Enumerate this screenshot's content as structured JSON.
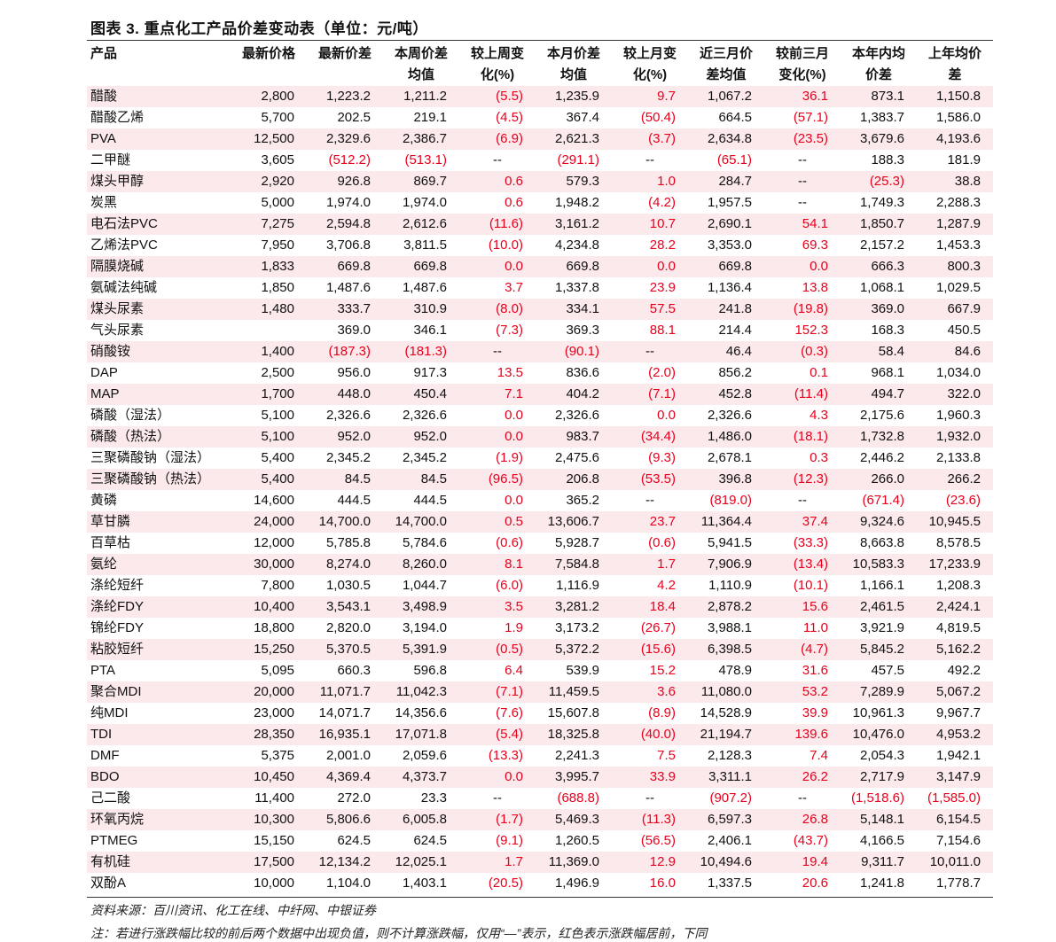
{
  "title": "图表 3. 重点化工产品价差变动表（单位：元/吨）",
  "headers": [
    [
      "产品",
      ""
    ],
    [
      "最新价格",
      ""
    ],
    [
      "最新价差",
      ""
    ],
    [
      "本周价差",
      "均值"
    ],
    [
      "较上周变",
      "化(%)"
    ],
    [
      "本月价差",
      "均值"
    ],
    [
      "较上月变",
      "化(%)"
    ],
    [
      "近三月价",
      "差均值"
    ],
    [
      "较前三月",
      "变化(%)"
    ],
    [
      "本年内均",
      "价差"
    ],
    [
      "上年均价",
      "差"
    ]
  ],
  "rows": [
    [
      "醋酸",
      "2,800",
      "1,223.2",
      "1,211.2",
      "(5.5)",
      "1,235.9",
      "9.7",
      "1,067.2",
      "36.1",
      "873.1",
      "1,150.8"
    ],
    [
      "醋酸乙烯",
      "5,700",
      "202.5",
      "219.1",
      "(4.5)",
      "367.4",
      "(50.4)",
      "664.5",
      "(57.1)",
      "1,383.7",
      "1,586.0"
    ],
    [
      "PVA",
      "12,500",
      "2,329.6",
      "2,386.7",
      "(6.9)",
      "2,621.3",
      "(3.7)",
      "2,634.8",
      "(23.5)",
      "3,679.6",
      "4,193.6"
    ],
    [
      "二甲醚",
      "3,605",
      "(512.2)",
      "(513.1)",
      "--",
      "(291.1)",
      "--",
      "(65.1)",
      "--",
      "188.3",
      "181.9"
    ],
    [
      "煤头甲醇",
      "2,920",
      "926.8",
      "869.7",
      "0.6",
      "579.3",
      "1.0",
      "284.7",
      "--",
      "(25.3)",
      "38.8"
    ],
    [
      "炭黑",
      "5,000",
      "1,974.0",
      "1,974.0",
      "0.6",
      "1,948.2",
      "(4.2)",
      "1,957.5",
      "--",
      "1,749.3",
      "2,288.3"
    ],
    [
      "电石法PVC",
      "7,275",
      "2,594.8",
      "2,612.6",
      "(11.6)",
      "3,161.2",
      "10.7",
      "2,690.1",
      "54.1",
      "1,850.7",
      "1,287.9"
    ],
    [
      "乙烯法PVC",
      "7,950",
      "3,706.8",
      "3,811.5",
      "(10.0)",
      "4,234.8",
      "28.2",
      "3,353.0",
      "69.3",
      "2,157.2",
      "1,453.3"
    ],
    [
      "隔膜烧碱",
      "1,833",
      "669.8",
      "669.8",
      "0.0",
      "669.8",
      "0.0",
      "669.8",
      "0.0",
      "666.3",
      "800.3"
    ],
    [
      "氨碱法纯碱",
      "1,850",
      "1,487.6",
      "1,487.6",
      "3.7",
      "1,337.8",
      "23.9",
      "1,136.4",
      "13.8",
      "1,068.1",
      "1,029.5"
    ],
    [
      "煤头尿素",
      "1,480",
      "333.7",
      "310.9",
      "(8.0)",
      "334.1",
      "57.5",
      "241.8",
      "(19.8)",
      "369.0",
      "667.9"
    ],
    [
      "气头尿素",
      "",
      "369.0",
      "346.1",
      "(7.3)",
      "369.3",
      "88.1",
      "214.4",
      "152.3",
      "168.3",
      "450.5"
    ],
    [
      "硝酸铵",
      "1,400",
      "(187.3)",
      "(181.3)",
      "--",
      "(90.1)",
      "--",
      "46.4",
      "(0.3)",
      "58.4",
      "84.6"
    ],
    [
      "DAP",
      "2,500",
      "956.0",
      "917.3",
      "13.5",
      "836.6",
      "(2.0)",
      "856.2",
      "0.1",
      "968.1",
      "1,034.0"
    ],
    [
      "MAP",
      "1,700",
      "448.0",
      "450.4",
      "7.1",
      "404.2",
      "(7.1)",
      "452.8",
      "(11.4)",
      "494.7",
      "322.0"
    ],
    [
      "磷酸（湿法）",
      "5,100",
      "2,326.6",
      "2,326.6",
      "0.0",
      "2,326.6",
      "0.0",
      "2,326.6",
      "4.3",
      "2,175.6",
      "1,960.3"
    ],
    [
      "磷酸（热法）",
      "5,100",
      "952.0",
      "952.0",
      "0.0",
      "983.7",
      "(34.4)",
      "1,486.0",
      "(18.1)",
      "1,732.8",
      "1,932.0"
    ],
    [
      "三聚磷酸钠（湿法）",
      "5,400",
      "2,345.2",
      "2,345.2",
      "(1.9)",
      "2,475.6",
      "(9.3)",
      "2,678.1",
      "0.3",
      "2,446.2",
      "2,133.8"
    ],
    [
      "三聚磷酸钠（热法）",
      "5,400",
      "84.5",
      "84.5",
      "(96.5)",
      "206.8",
      "(53.5)",
      "396.8",
      "(12.3)",
      "266.0",
      "266.2"
    ],
    [
      "黄磷",
      "14,600",
      "444.5",
      "444.5",
      "0.0",
      "365.2",
      "--",
      "(819.0)",
      "--",
      "(671.4)",
      "(23.6)"
    ],
    [
      "草甘膦",
      "24,000",
      "14,700.0",
      "14,700.0",
      "0.5",
      "13,606.7",
      "23.7",
      "11,364.4",
      "37.4",
      "9,324.6",
      "10,945.5"
    ],
    [
      "百草枯",
      "12,000",
      "5,785.8",
      "5,784.6",
      "(0.6)",
      "5,928.7",
      "(0.6)",
      "5,941.5",
      "(33.3)",
      "8,663.8",
      "8,578.5"
    ],
    [
      "氨纶",
      "30,000",
      "8,274.0",
      "8,260.0",
      "8.1",
      "7,584.8",
      "1.7",
      "7,906.9",
      "(13.4)",
      "10,583.3",
      "17,233.9"
    ],
    [
      "涤纶短纤",
      "7,800",
      "1,030.5",
      "1,044.7",
      "(6.0)",
      "1,116.9",
      "4.2",
      "1,110.9",
      "(10.1)",
      "1,166.1",
      "1,208.3"
    ],
    [
      "涤纶FDY",
      "10,400",
      "3,543.1",
      "3,498.9",
      "3.5",
      "3,281.2",
      "18.4",
      "2,878.2",
      "15.6",
      "2,461.5",
      "2,424.1"
    ],
    [
      "锦纶FDY",
      "18,800",
      "2,820.0",
      "3,194.0",
      "1.9",
      "3,173.2",
      "(26.7)",
      "3,988.1",
      "11.0",
      "3,921.9",
      "4,819.5"
    ],
    [
      "粘胶短纤",
      "15,250",
      "5,370.5",
      "5,391.9",
      "(0.5)",
      "5,372.2",
      "(15.6)",
      "6,398.5",
      "(4.7)",
      "5,845.2",
      "5,162.2"
    ],
    [
      "PTA",
      "5,095",
      "660.3",
      "596.8",
      "6.4",
      "539.9",
      "15.2",
      "478.9",
      "31.6",
      "457.5",
      "492.2"
    ],
    [
      "聚合MDI",
      "20,000",
      "11,071.7",
      "11,042.3",
      "(7.1)",
      "11,459.5",
      "3.6",
      "11,080.0",
      "53.2",
      "7,289.9",
      "5,067.2"
    ],
    [
      "纯MDI",
      "23,000",
      "14,071.7",
      "14,356.6",
      "(7.6)",
      "15,607.8",
      "(8.9)",
      "14,528.9",
      "39.9",
      "10,961.3",
      "9,967.7"
    ],
    [
      "TDI",
      "28,350",
      "16,935.1",
      "17,071.8",
      "(5.4)",
      "18,325.8",
      "(40.0)",
      "21,194.7",
      "139.6",
      "10,476.0",
      "4,953.2"
    ],
    [
      "DMF",
      "5,375",
      "2,001.0",
      "2,059.6",
      "(13.3)",
      "2,241.3",
      "7.5",
      "2,128.3",
      "7.4",
      "2,054.3",
      "1,942.1"
    ],
    [
      "BDO",
      "10,450",
      "4,369.4",
      "4,373.7",
      "0.0",
      "3,995.7",
      "33.9",
      "3,311.1",
      "26.2",
      "2,717.9",
      "3,147.9"
    ],
    [
      "己二酸",
      "11,400",
      "272.0",
      "23.3",
      "--",
      "(688.8)",
      "--",
      "(907.2)",
      "--",
      "(1,518.6)",
      "(1,585.0)"
    ],
    [
      "环氧丙烷",
      "10,300",
      "5,806.6",
      "6,005.8",
      "(1.7)",
      "5,469.3",
      "(11.3)",
      "6,597.3",
      "26.8",
      "5,148.1",
      "6,154.5"
    ],
    [
      "PTMEG",
      "15,150",
      "624.5",
      "624.5",
      "(9.1)",
      "1,260.5",
      "(56.5)",
      "2,406.1",
      "(43.7)",
      "4,166.5",
      "7,154.6"
    ],
    [
      "有机硅",
      "17,500",
      "12,134.2",
      "12,025.1",
      "1.7",
      "11,369.0",
      "12.9",
      "10,494.6",
      "19.4",
      "9,311.7",
      "10,011.0"
    ],
    [
      "双酚A",
      "10,000",
      "1,104.0",
      "1,403.1",
      "(20.5)",
      "1,496.9",
      "16.0",
      "1,337.5",
      "20.6",
      "1,241.8",
      "1,778.7"
    ]
  ],
  "source": "资料来源：百川资讯、化工在线、中纤网、中银证券",
  "note": "注：若进行涨跌幅比较的前后两个数据中出现负值，则不计算涨跌幅，仅用“—”表示，红色表示涨跌幅居前，下同",
  "colors": {
    "highlight_red": "#e8001c",
    "stripe_pink": "#fbe9ec"
  }
}
